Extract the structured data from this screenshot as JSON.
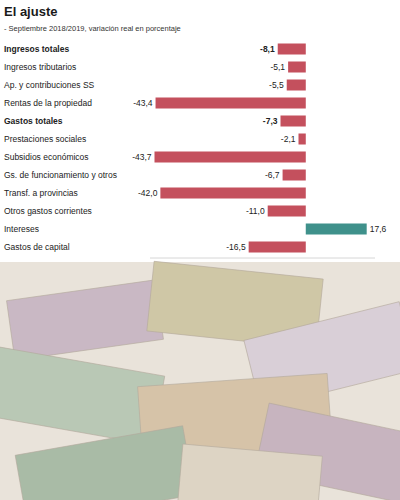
{
  "chart_data": {
    "type": "bar",
    "orientation": "horizontal",
    "title": "El ajuste",
    "subtitle": "- Septiembre 2018/2019, variación real en porcentaje",
    "categories": [
      "Ingresos totales",
      "Ingresos tributarios",
      "Ap. y contribuciones SS",
      "Rentas de la propiedad",
      "Gastos totales",
      "Prestaciones sociales",
      "Subsidios económicos",
      "Gs. de funcionamiento y otros",
      "Transf. a provincias",
      "Otros gastos corrientes",
      "Intereses",
      "Gastos de capital"
    ],
    "values": [
      -8.1,
      -5.1,
      -5.5,
      -43.4,
      -7.3,
      -2.1,
      -43.7,
      -6.7,
      -42.0,
      -11.0,
      17.6,
      -16.5
    ],
    "value_labels": [
      "-8,1",
      "-5,1",
      "-5,5",
      "-43,4",
      "-7,3",
      "-2,1",
      "-43,7",
      "-6,7",
      "-42,0",
      "-11,0",
      "17,6",
      "-16,5"
    ],
    "colors": [
      "#c4505d",
      "#c4505d",
      "#c4505d",
      "#c4505d",
      "#c4505d",
      "#c4505d",
      "#c4505d",
      "#c4505d",
      "#c4505d",
      "#c4505d",
      "#3f918b",
      "#c4505d"
    ],
    "xlim": [
      -45,
      20
    ],
    "data_labels": true,
    "tick_labels": false,
    "grid": false
  }
}
